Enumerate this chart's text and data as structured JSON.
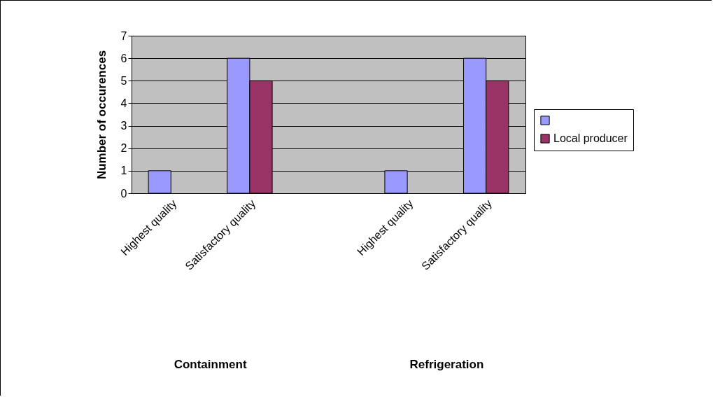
{
  "chart_data": {
    "type": "bar",
    "ylabel": "Number of occurences",
    "categories": [
      "Highest quality",
      "Satisfactory quality",
      null,
      "Highest quality",
      "Satisfactory quality"
    ],
    "series": [
      {
        "color": "#9999ff",
        "values": [
          1,
          6,
          null,
          1,
          6
        ]
      },
      {
        "name": "Local producer",
        "color": "#993366",
        "values": [
          null,
          5,
          null,
          null,
          5
        ]
      }
    ],
    "ylim": [
      0,
      7
    ],
    "yticks": [
      0,
      1,
      2,
      3,
      4,
      5,
      6,
      7
    ],
    "grid": "y",
    "legend": "right",
    "annotations": [
      "Containment",
      "Refrigeration"
    ]
  }
}
